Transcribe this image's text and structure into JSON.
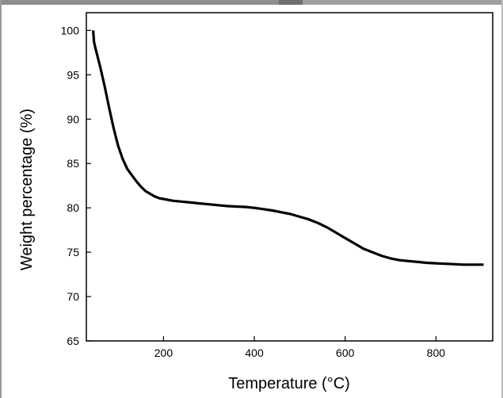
{
  "chart_data": {
    "type": "line",
    "title": "",
    "xlabel": "Temperature (°C)",
    "ylabel": "Weight percentage (%)",
    "xlim": [
      30,
      925
    ],
    "ylim": [
      65,
      102
    ],
    "xticks": [
      200,
      400,
      600,
      800
    ],
    "yticks": [
      65,
      70,
      75,
      80,
      85,
      90,
      95,
      100
    ],
    "grid": false,
    "series": [
      {
        "x": [
          45,
          47,
          50,
          55,
          60,
          70,
          80,
          90,
          100,
          110,
          120,
          130,
          140,
          150,
          160,
          170,
          180,
          190,
          200,
          220,
          240,
          260,
          280,
          300,
          320,
          340,
          360,
          380,
          400,
          420,
          440,
          460,
          480,
          500,
          520,
          540,
          560,
          580,
          600,
          620,
          640,
          660,
          680,
          700,
          720,
          740,
          760,
          780,
          800,
          820,
          840,
          860,
          880,
          905
        ],
        "y": [
          100.0,
          98.7,
          98.0,
          97.0,
          96.0,
          93.8,
          91.3,
          89.0,
          87.0,
          85.5,
          84.4,
          83.7,
          83.0,
          82.4,
          81.9,
          81.6,
          81.3,
          81.1,
          81.0,
          80.8,
          80.7,
          80.6,
          80.5,
          80.4,
          80.3,
          80.2,
          80.15,
          80.1,
          80.0,
          79.85,
          79.7,
          79.5,
          79.3,
          79.0,
          78.7,
          78.3,
          77.8,
          77.2,
          76.6,
          76.0,
          75.4,
          75.0,
          74.6,
          74.3,
          74.1,
          74.0,
          73.9,
          73.8,
          73.75,
          73.7,
          73.65,
          73.6,
          73.6,
          73.6
        ]
      }
    ]
  }
}
